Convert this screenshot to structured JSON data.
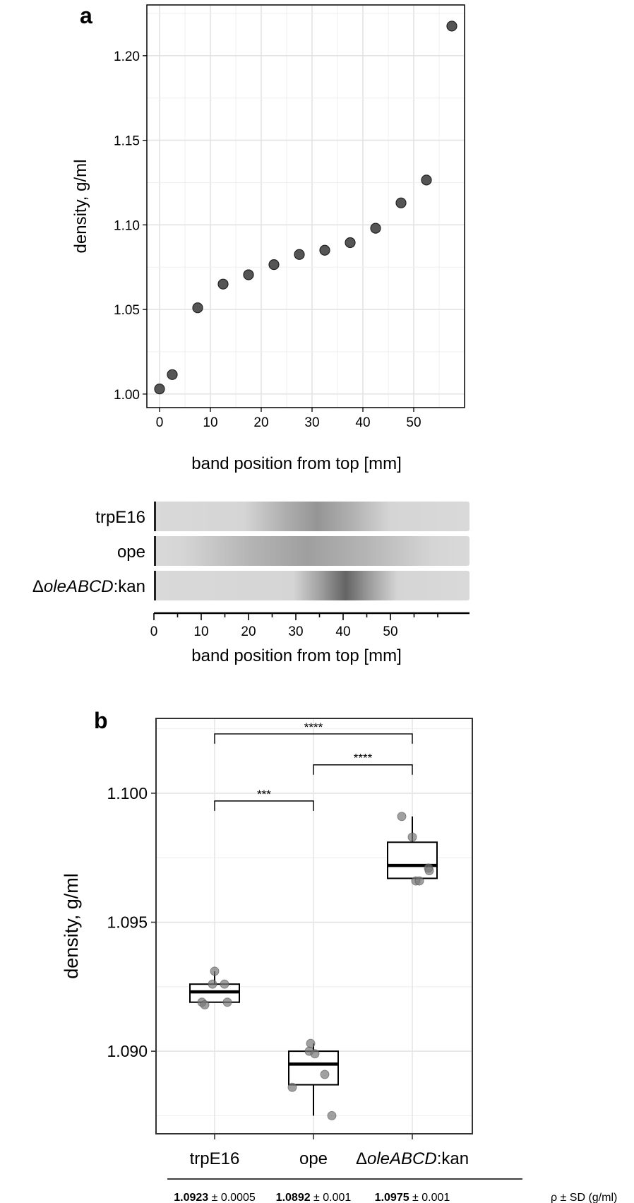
{
  "panels": [
    {
      "id": "a",
      "letter": "a",
      "chart_data": {
        "type": "scatter",
        "xlabel": "band position from top [mm]",
        "ylabel": "density, g/ml",
        "xlim": [
          -2.5,
          60
        ],
        "ylim": [
          0.992,
          1.23
        ],
        "xticks": [
          "0",
          "10",
          "20",
          "30",
          "40",
          "50"
        ],
        "xtick_values": [
          0,
          10,
          20,
          30,
          40,
          50
        ],
        "yticks": [
          "1.00",
          "1.05",
          "1.10",
          "1.15",
          "1.20"
        ],
        "ytick_values": [
          1.0,
          1.05,
          1.1,
          1.15,
          1.2
        ],
        "grid": true,
        "points": [
          {
            "x": 0,
            "y": 1.003
          },
          {
            "x": 2.5,
            "y": 1.0115
          },
          {
            "x": 7.5,
            "y": 1.051
          },
          {
            "x": 12.5,
            "y": 1.065
          },
          {
            "x": 17.5,
            "y": 1.0705
          },
          {
            "x": 22.5,
            "y": 1.0765
          },
          {
            "x": 27.5,
            "y": 1.0825
          },
          {
            "x": 32.5,
            "y": 1.085
          },
          {
            "x": 37.5,
            "y": 1.0895
          },
          {
            "x": 42.5,
            "y": 1.098
          },
          {
            "x": 47.5,
            "y": 1.113
          },
          {
            "x": 52.5,
            "y": 1.1265
          },
          {
            "x": 57.5,
            "y": 1.2175
          }
        ],
        "point_color": "#555555"
      }
    }
  ],
  "gel": {
    "lanes": [
      {
        "label_plain": "trpE16",
        "label_italic": "",
        "label_suffix": "",
        "band_mm": 34.5,
        "band_width_mm": 7,
        "band_strength": 0.28
      },
      {
        "label_plain": "ope",
        "label_italic": "",
        "label_suffix": "",
        "band_mm": 32.5,
        "band_width_mm": 12,
        "band_strength": 0.22
      },
      {
        "label_plain": "Δ",
        "label_italic": "oleABCD",
        "label_suffix": ":kan",
        "band_mm": 40.5,
        "band_width_mm": 5,
        "band_strength": 0.55
      }
    ],
    "xlabel": "band position from top [mm]",
    "xticks": [
      "0",
      "10",
      "20",
      "30",
      "40",
      "50"
    ],
    "xtick_values": [
      0,
      10,
      20,
      30,
      40,
      50
    ]
  },
  "panel_b": {
    "letter": "b",
    "chart_data": {
      "type": "box",
      "ylabel": "density, g/ml",
      "ylim": [
        1.0868,
        1.1029
      ],
      "yticks": [
        "1.090",
        "1.095",
        "1.100"
      ],
      "ytick_values": [
        1.09,
        1.095,
        1.1
      ],
      "grid": true,
      "categories": [
        {
          "plain": "trpE16",
          "italic": "",
          "suffix": ""
        },
        {
          "plain": "ope",
          "italic": "",
          "suffix": ""
        },
        {
          "plain": "Δ",
          "italic": "oleABCD",
          "suffix": ":kan"
        }
      ],
      "boxes": [
        {
          "q1": 1.0919,
          "median": 1.0923,
          "q3": 1.0926,
          "whisker_low": 1.0919,
          "whisker_high": 1.0931,
          "points": [
            1.0931,
            1.0926,
            1.0926,
            1.0919,
            1.0918,
            1.0919
          ]
        },
        {
          "q1": 1.0887,
          "median": 1.0895,
          "q3": 1.09,
          "whisker_low": 1.0875,
          "whisker_high": 1.0903,
          "points": [
            1.0903,
            1.09,
            1.0899,
            1.0891,
            1.0886,
            1.0875
          ]
        },
        {
          "q1": 1.0967,
          "median": 1.0972,
          "q3": 1.0981,
          "whisker_low": 1.0967,
          "whisker_high": 1.0991,
          "points": [
            1.0991,
            1.0983,
            1.0971,
            1.097,
            1.0966,
            1.0966
          ]
        }
      ],
      "significance": [
        {
          "from": 0,
          "to": 2,
          "y": 1.1023,
          "label": "****"
        },
        {
          "from": 1,
          "to": 2,
          "y": 1.1011,
          "label": "****"
        },
        {
          "from": 0,
          "to": 1,
          "y": 1.0997,
          "label": "***"
        }
      ],
      "point_color": "#777777"
    },
    "stats": [
      {
        "bold": "1.0923",
        "rest": " ± 0.0005"
      },
      {
        "bold": "1.0892",
        "rest": " ± 0.001"
      },
      {
        "bold": "1.0975",
        "rest": " ± 0.001"
      }
    ],
    "stats_label": "ρ ± SD (g/ml)"
  }
}
